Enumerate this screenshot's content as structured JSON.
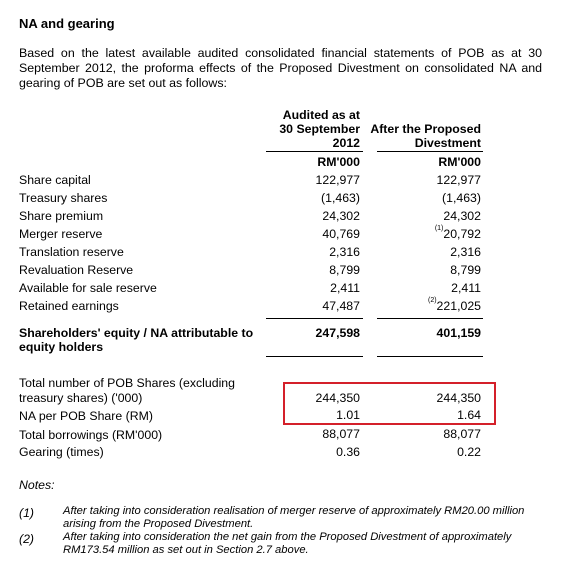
{
  "title": "NA and gearing",
  "intro": "Based on the latest available audited consolidated financial statements of POB as at 30 September 2012, the proforma effects of the Proposed Divestment on consolidated NA and gearing of POB are set out as follows:",
  "columns": {
    "col1_line1": "Audited as at",
    "col1_line2": "30 September",
    "col1_line3": "2012",
    "col2_line1": "After the Proposed",
    "col2_line2": "Divestment",
    "unit1": "RM'000",
    "unit2": "RM'000"
  },
  "rows": [
    {
      "label": "Share capital",
      "v1": "122,977",
      "v2": "122,977",
      "fn": ""
    },
    {
      "label": "Treasury shares",
      "v1": "(1,463)",
      "v2": "(1,463)",
      "fn": ""
    },
    {
      "label": "Share premium",
      "v1": "24,302",
      "v2": "24,302",
      "fn": ""
    },
    {
      "label": "Merger reserve",
      "v1": "40,769",
      "v2": "20,792",
      "fn": "(1)"
    },
    {
      "label": "Translation reserve",
      "v1": "2,316",
      "v2": "2,316",
      "fn": ""
    },
    {
      "label": "Revaluation Reserve",
      "v1": "8,799",
      "v2": "8,799",
      "fn": ""
    },
    {
      "label": "Available for sale reserve",
      "v1": "2,411",
      "v2": "2,411",
      "fn": ""
    },
    {
      "label": "Retained earnings",
      "v1": "47,487",
      "v2": "221,025",
      "fn": "(2)"
    }
  ],
  "equity": {
    "label_line1": "Shareholders' equity / NA attributable to",
    "label_line2": "equity holders",
    "v1": "247,598",
    "v2": "401,159"
  },
  "shares": {
    "label_line1": "Total number of POB Shares (excluding",
    "label_line2": "treasury shares) ('000)",
    "v1": "244,350",
    "v2": "244,350"
  },
  "na_per_share": {
    "label": "NA per POB Share (RM)",
    "v1": "1.01",
    "v2": "1.64"
  },
  "borrowings": {
    "label": "Total borrowings (RM'000)",
    "v1": "88,077",
    "v2": "88,077"
  },
  "gearing": {
    "label": "Gearing (times)",
    "v1": "0.36",
    "v2": "0.22"
  },
  "notes": {
    "heading": "Notes:",
    "items": [
      {
        "num": "(1)",
        "text": "After taking into consideration realisation of merger reserve of approximately RM20.00 million arising from the Proposed Divestment."
      },
      {
        "num": "(2)",
        "text": "After taking into consideration the net gain from the Proposed Divestment of approximately RM173.54 million as set out in Section 2.7 above."
      }
    ]
  },
  "highlight_color": "#d4202a"
}
